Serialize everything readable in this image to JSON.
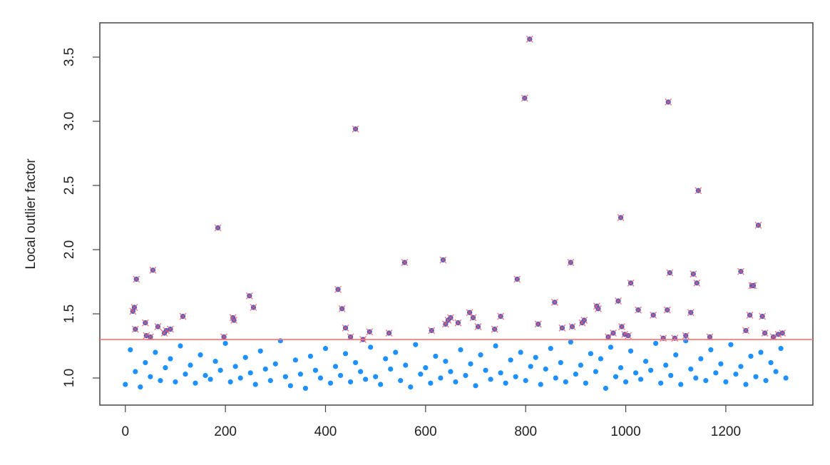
{
  "chart_data": {
    "type": "scatter",
    "y_label": "Local outlier factor",
    "xlim": [
      -51,
      1374
    ],
    "ylim": [
      0.789,
      3.767
    ],
    "xticks": [
      0,
      200,
      400,
      600,
      800,
      1000,
      1200
    ],
    "yticks": [
      {
        "value": 1,
        "label": "1.0"
      },
      1.5,
      {
        "value": 2,
        "label": "2.0"
      },
      2.5,
      {
        "value": 3,
        "label": "3.0"
      },
      3.5
    ],
    "hline": {
      "value": 1.3,
      "color": "#ff7373"
    },
    "series": [
      {
        "color": "#1e90ff",
        "marker": "dot",
        "x": [
          0,
          10,
          20,
          30,
          40,
          50,
          60,
          70,
          80,
          90,
          100,
          110,
          120,
          130,
          140,
          150,
          160,
          170,
          180,
          190,
          200,
          210,
          220,
          230,
          240,
          250,
          260,
          270,
          280,
          290,
          300,
          310,
          320,
          330,
          340,
          350,
          360,
          370,
          380,
          390,
          400,
          410,
          420,
          430,
          440,
          450,
          460,
          470,
          480,
          490,
          500,
          510,
          520,
          530,
          540,
          550,
          560,
          570,
          580,
          590,
          600,
          610,
          620,
          630,
          640,
          650,
          660,
          670,
          680,
          690,
          700,
          710,
          720,
          730,
          740,
          750,
          760,
          770,
          780,
          790,
          800,
          810,
          820,
          830,
          840,
          850,
          860,
          870,
          880,
          890,
          900,
          910,
          920,
          930,
          940,
          950,
          960,
          970,
          980,
          990,
          1000,
          1010,
          1020,
          1030,
          1040,
          1050,
          1060,
          1070,
          1080,
          1090,
          1100,
          1110,
          1120,
          1130,
          1140,
          1150,
          1160,
          1170,
          1180,
          1190,
          1200,
          1210,
          1220,
          1230,
          1240,
          1250,
          1260,
          1270,
          1280,
          1290,
          1300,
          1310,
          1320
        ],
        "values": [
          0.95,
          1.22,
          1.05,
          0.93,
          1.12,
          1.01,
          1.2,
          0.98,
          1.08,
          1.15,
          0.97,
          1.25,
          1.03,
          1.1,
          0.96,
          1.18,
          1.02,
          0.99,
          1.13,
          1.06,
          1.27,
          0.97,
          1.09,
          1.0,
          1.16,
          1.04,
          0.95,
          1.21,
          1.07,
          0.98,
          1.11,
          1.29,
          1.01,
          0.94,
          1.14,
          1.03,
          0.92,
          1.17,
          1.06,
          1.0,
          1.23,
          0.96,
          1.09,
          1.02,
          1.19,
          0.97,
          1.12,
          1.05,
          0.99,
          1.24,
          1.01,
          0.95,
          1.15,
          1.07,
          1.2,
          0.98,
          1.1,
          0.93,
          1.26,
          1.03,
          1.08,
          0.96,
          1.17,
          1.0,
          1.13,
          1.05,
          0.97,
          1.22,
          1.02,
          1.11,
          0.94,
          1.18,
          1.06,
          0.99,
          1.25,
          1.04,
          0.96,
          1.14,
          1.01,
          1.2,
          0.98,
          1.09,
          1.16,
          0.95,
          1.07,
          1.23,
          1.0,
          1.12,
          0.97,
          1.28,
          1.03,
          1.1,
          0.96,
          1.19,
          1.05,
          1.15,
          0.92,
          1.24,
          1.01,
          1.08,
          0.97,
          1.21,
          1.04,
          0.99,
          1.13,
          1.06,
          1.27,
          0.96,
          1.1,
          1.02,
          1.18,
          0.95,
          1.29,
          1.07,
          1.0,
          1.15,
          0.98,
          1.22,
          1.04,
          1.11,
          0.97,
          1.26,
          1.03,
          1.09,
          0.95,
          1.17,
          1.01,
          1.2,
          0.98,
          1.12,
          1.05,
          1.23,
          1.0
        ]
      },
      {
        "color": "#3a5fcd",
        "marker": "dot-x",
        "cross_color": "#f05a6a",
        "x": [
          15,
          18,
          20,
          22,
          40,
          42,
          50,
          55,
          65,
          78,
          82,
          90,
          115,
          185,
          197,
          215,
          217,
          248,
          256,
          425,
          433,
          440,
          450,
          460,
          475,
          488,
          527,
          558,
          612,
          635,
          640,
          645,
          650,
          665,
          688,
          695,
          705,
          738,
          750,
          783,
          798,
          808,
          825,
          858,
          873,
          890,
          893,
          913,
          917,
          942,
          945,
          965,
          975,
          985,
          990,
          992,
          998,
          1005,
          1010,
          1025,
          1055,
          1075,
          1083,
          1085,
          1088,
          1098,
          1120,
          1130,
          1135,
          1142,
          1145,
          1168,
          1230,
          1240,
          1248,
          1252,
          1255,
          1265,
          1273,
          1278,
          1295,
          1305,
          1313
        ],
        "values": [
          1.52,
          1.55,
          1.38,
          1.77,
          1.43,
          1.33,
          1.32,
          1.84,
          1.4,
          1.35,
          1.37,
          1.38,
          1.48,
          2.17,
          1.32,
          1.47,
          1.45,
          1.64,
          1.55,
          1.69,
          1.54,
          1.39,
          1.32,
          2.94,
          1.3,
          1.36,
          1.35,
          1.9,
          1.37,
          1.92,
          1.42,
          1.45,
          1.47,
          1.43,
          1.51,
          1.47,
          1.4,
          1.38,
          1.48,
          1.77,
          3.18,
          3.64,
          1.42,
          1.59,
          1.39,
          1.9,
          1.4,
          1.43,
          1.45,
          1.56,
          1.54,
          1.32,
          1.35,
          1.6,
          2.25,
          1.4,
          1.34,
          1.33,
          1.74,
          1.53,
          1.49,
          1.31,
          1.53,
          3.15,
          1.82,
          1.31,
          1.33,
          1.51,
          1.81,
          1.74,
          2.46,
          1.32,
          1.83,
          1.37,
          1.49,
          1.72,
          1.72,
          2.19,
          1.48,
          1.35,
          1.32,
          1.34,
          1.35
        ]
      }
    ]
  }
}
